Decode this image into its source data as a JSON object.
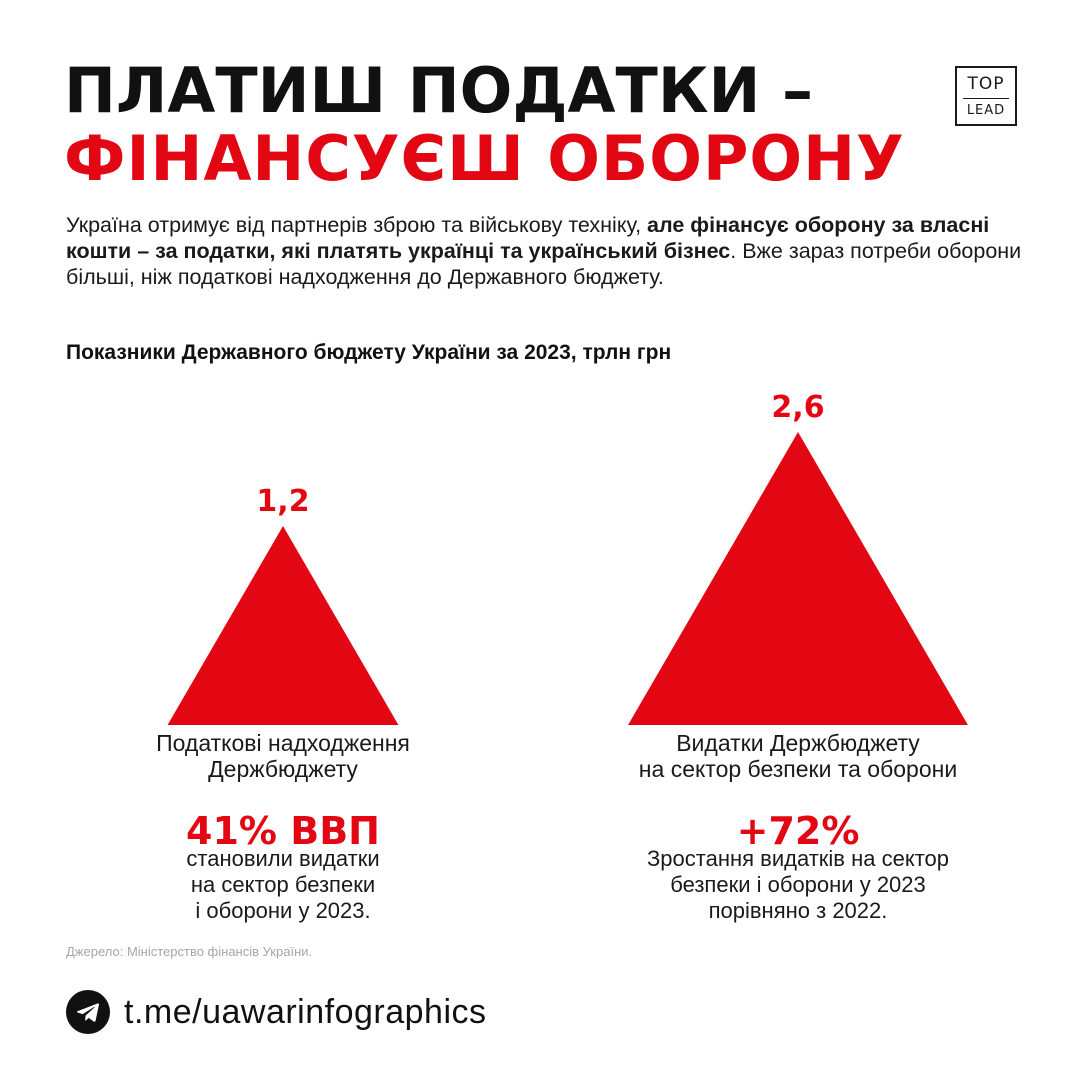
{
  "header": {
    "title_line1": "ПЛАТИШ ПОДАТКИ –",
    "title_line2": "ФІНАНСУЄШ ОБОРОНУ"
  },
  "logo": {
    "top": "TOP",
    "bottom": "LEAD"
  },
  "intro": {
    "part1": "Україна отримує від партнерів зброю та військову техніку, ",
    "bold": "але фінансує оборону за власні кошти – за податки, які платять українці та український бізнес",
    "part2": ". Вже зараз потреби оборони більші, ніж податкові надходження до Державного бюджету."
  },
  "colors": {
    "accent": "#e30613",
    "text": "#1a1a1a"
  },
  "chart_data": {
    "type": "area",
    "title": "Показники Державного бюджету України за 2023, трлн грн",
    "unit": "трлн грн",
    "categories": [
      "Податкові надходження Держбюджету",
      "Видатки Держбюджету на сектор безпеки та оборони"
    ],
    "category_lines": [
      [
        "Податкові надходження",
        "Держбюджету"
      ],
      [
        "Видатки Держбюджету",
        "на сектор безпеки та оборони"
      ]
    ],
    "values": [
      1.2,
      2.6
    ],
    "value_labels": [
      "1,2",
      "2,6"
    ],
    "shape": "triangle"
  },
  "stats": [
    {
      "value": "41% ВВП",
      "lines": [
        "становили видатки",
        "на сектор безпеки",
        "і оборони у 2023."
      ]
    },
    {
      "value": "+72%",
      "lines": [
        "Зростання видатків на сектор",
        "безпеки і оборони у 2023",
        "порівняно з 2022."
      ]
    }
  ],
  "source": "Джерело: Міністерство фінансів України.",
  "footer": {
    "link": "t.me/uawarinfographics",
    "icon": "telegram-icon"
  }
}
